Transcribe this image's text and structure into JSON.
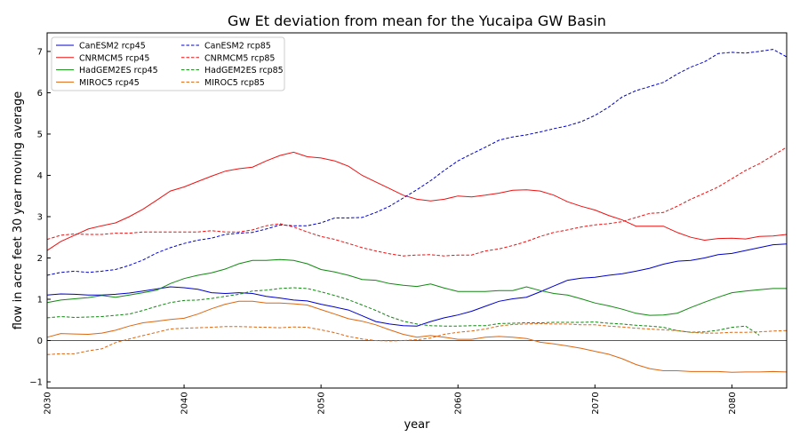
{
  "chart_data": {
    "type": "line",
    "title": "Gw Et deviation from mean for the Yucaipa GW Basin",
    "xlabel": "year",
    "ylabel": "flow in acre feet 30 year moving average",
    "xlim": [
      2030,
      2084
    ],
    "ylim": [
      -1.15,
      7.45
    ],
    "xticks": [
      "2030",
      "2040",
      "2050",
      "2060",
      "2070",
      "2080"
    ],
    "yticks": [
      "−1",
      "0",
      "1",
      "2",
      "3",
      "4",
      "5",
      "6",
      "7"
    ],
    "zero_line": true,
    "grid": false,
    "legend_position": "top-left",
    "x": [
      2030,
      2031,
      2032,
      2033,
      2034,
      2035,
      2036,
      2037,
      2038,
      2039,
      2040,
      2041,
      2042,
      2043,
      2044,
      2045,
      2046,
      2047,
      2048,
      2049,
      2050,
      2051,
      2052,
      2053,
      2054,
      2055,
      2056,
      2057,
      2058,
      2059,
      2060,
      2061,
      2062,
      2063,
      2064,
      2065,
      2066,
      2067,
      2068,
      2069,
      2070,
      2071,
      2072,
      2073,
      2074,
      2075,
      2076,
      2077,
      2078,
      2079,
      2080,
      2081,
      2082,
      2083,
      2084
    ],
    "series": [
      {
        "name": "CanESM2 rcp45",
        "color": "#0000cc",
        "dash": "solid",
        "values": [
          1.1,
          1.13,
          1.12,
          1.1,
          1.1,
          1.12,
          1.15,
          1.2,
          1.25,
          1.3,
          1.28,
          1.24,
          1.16,
          1.14,
          1.16,
          1.14,
          1.07,
          1.03,
          0.98,
          0.96,
          0.88,
          0.81,
          0.74,
          0.6,
          0.46,
          0.4,
          0.36,
          0.35,
          0.46,
          0.55,
          0.62,
          0.71,
          0.83,
          0.95,
          1.01,
          1.05,
          1.18,
          1.32,
          1.46,
          1.51,
          1.53,
          1.58,
          1.62,
          1.68,
          1.75,
          1.85,
          1.92,
          1.94,
          2.0,
          2.08,
          2.11,
          2.18,
          2.25,
          2.32,
          2.34
        ]
      },
      {
        "name": "CNRMCM5 rcp45",
        "color": "#ee1111",
        "dash": "solid",
        "values": [
          2.18,
          2.4,
          2.55,
          2.7,
          2.78,
          2.85,
          3.0,
          3.18,
          3.4,
          3.62,
          3.72,
          3.85,
          3.98,
          4.1,
          4.16,
          4.2,
          4.35,
          4.48,
          4.56,
          4.45,
          4.42,
          4.35,
          4.22,
          4.0,
          3.84,
          3.68,
          3.52,
          3.42,
          3.38,
          3.42,
          3.5,
          3.48,
          3.52,
          3.57,
          3.64,
          3.65,
          3.62,
          3.52,
          3.36,
          3.25,
          3.16,
          3.03,
          2.92,
          2.77,
          2.77,
          2.77,
          2.62,
          2.5,
          2.43,
          2.47,
          2.48,
          2.46,
          2.52,
          2.53,
          2.57
        ]
      },
      {
        "name": "HadGEM2ES rcp45",
        "color": "#118811",
        "dash": "solid",
        "values": [
          0.92,
          0.98,
          1.01,
          1.04,
          1.09,
          1.05,
          1.1,
          1.16,
          1.22,
          1.38,
          1.5,
          1.58,
          1.64,
          1.73,
          1.86,
          1.94,
          1.94,
          1.96,
          1.94,
          1.86,
          1.72,
          1.66,
          1.58,
          1.48,
          1.46,
          1.38,
          1.34,
          1.31,
          1.37,
          1.27,
          1.19,
          1.19,
          1.19,
          1.21,
          1.21,
          1.3,
          1.21,
          1.14,
          1.1,
          1.01,
          0.91,
          0.84,
          0.76,
          0.66,
          0.61,
          0.62,
          0.66,
          0.8,
          0.93,
          1.05,
          1.16,
          1.2,
          1.23,
          1.26,
          1.26
        ]
      },
      {
        "name": "MIROC5 rcp45",
        "color": "#dd6611",
        "dash": "solid",
        "values": [
          0.08,
          0.17,
          0.16,
          0.15,
          0.18,
          0.25,
          0.35,
          0.43,
          0.47,
          0.51,
          0.54,
          0.64,
          0.77,
          0.88,
          0.95,
          0.95,
          0.91,
          0.91,
          0.89,
          0.86,
          0.75,
          0.64,
          0.53,
          0.47,
          0.38,
          0.26,
          0.15,
          0.08,
          0.12,
          0.08,
          0.03,
          0.03,
          0.08,
          0.1,
          0.08,
          0.05,
          -0.04,
          -0.08,
          -0.13,
          -0.19,
          -0.26,
          -0.33,
          -0.44,
          -0.58,
          -0.68,
          -0.73,
          -0.73,
          -0.75,
          -0.75,
          -0.75,
          -0.77,
          -0.76,
          -0.76,
          -0.75,
          -0.76
        ]
      },
      {
        "name": "CanESM2 rcp85",
        "color": "#0000cc",
        "dash": "dashed",
        "values": [
          1.58,
          1.65,
          1.68,
          1.65,
          1.68,
          1.72,
          1.82,
          1.95,
          2.12,
          2.25,
          2.35,
          2.43,
          2.48,
          2.57,
          2.6,
          2.62,
          2.7,
          2.8,
          2.78,
          2.78,
          2.85,
          2.97,
          2.97,
          2.98,
          3.1,
          3.25,
          3.45,
          3.65,
          3.87,
          4.12,
          4.35,
          4.52,
          4.68,
          4.85,
          4.93,
          4.98,
          5.05,
          5.13,
          5.2,
          5.3,
          5.45,
          5.65,
          5.9,
          6.05,
          6.15,
          6.25,
          6.45,
          6.62,
          6.75,
          6.95,
          6.98,
          6.96,
          7.0,
          7.05,
          6.87
        ]
      },
      {
        "name": "CNRMCM5 rcp85",
        "color": "#ee1111",
        "dash": "dashed",
        "values": [
          2.45,
          2.55,
          2.58,
          2.57,
          2.57,
          2.6,
          2.6,
          2.63,
          2.63,
          2.63,
          2.63,
          2.63,
          2.66,
          2.63,
          2.63,
          2.68,
          2.78,
          2.83,
          2.75,
          2.63,
          2.52,
          2.45,
          2.35,
          2.25,
          2.17,
          2.1,
          2.05,
          2.07,
          2.08,
          2.05,
          2.07,
          2.07,
          2.17,
          2.22,
          2.3,
          2.4,
          2.52,
          2.62,
          2.68,
          2.75,
          2.8,
          2.83,
          2.88,
          2.98,
          3.08,
          3.1,
          3.25,
          3.42,
          3.57,
          3.72,
          3.92,
          4.12,
          4.28,
          4.48,
          4.68
        ]
      },
      {
        "name": "HadGEM2ES rcp85",
        "color": "#118811",
        "dash": "dashed",
        "values": [
          0.55,
          0.58,
          0.56,
          0.57,
          0.58,
          0.61,
          0.64,
          0.73,
          0.83,
          0.92,
          0.97,
          0.98,
          1.02,
          1.07,
          1.12,
          1.2,
          1.22,
          1.26,
          1.28,
          1.26,
          1.18,
          1.09,
          0.99,
          0.86,
          0.73,
          0.58,
          0.47,
          0.4,
          0.36,
          0.35,
          0.35,
          0.36,
          0.36,
          0.41,
          0.42,
          0.43,
          0.43,
          0.44,
          0.44,
          0.44,
          0.45,
          0.42,
          0.4,
          0.37,
          0.35,
          0.32,
          0.24,
          0.2,
          0.21,
          0.25,
          0.32,
          0.35,
          0.13,
          null,
          null
        ]
      },
      {
        "name": "MIROC5 rcp85",
        "color": "#dd6611",
        "dash": "dashed",
        "values": [
          -0.34,
          -0.32,
          -0.32,
          -0.25,
          -0.2,
          -0.05,
          0.04,
          0.12,
          0.2,
          0.28,
          0.3,
          0.31,
          0.32,
          0.34,
          0.34,
          0.33,
          0.32,
          0.31,
          0.33,
          0.32,
          0.26,
          0.19,
          0.1,
          0.04,
          0.0,
          -0.01,
          0.0,
          0.02,
          0.06,
          0.15,
          0.2,
          0.23,
          0.28,
          0.35,
          0.39,
          0.4,
          0.41,
          0.4,
          0.4,
          0.38,
          0.38,
          0.35,
          0.33,
          0.3,
          0.28,
          0.26,
          0.24,
          0.2,
          0.18,
          0.18,
          0.2,
          0.2,
          0.21,
          0.23,
          0.24
        ]
      }
    ]
  }
}
